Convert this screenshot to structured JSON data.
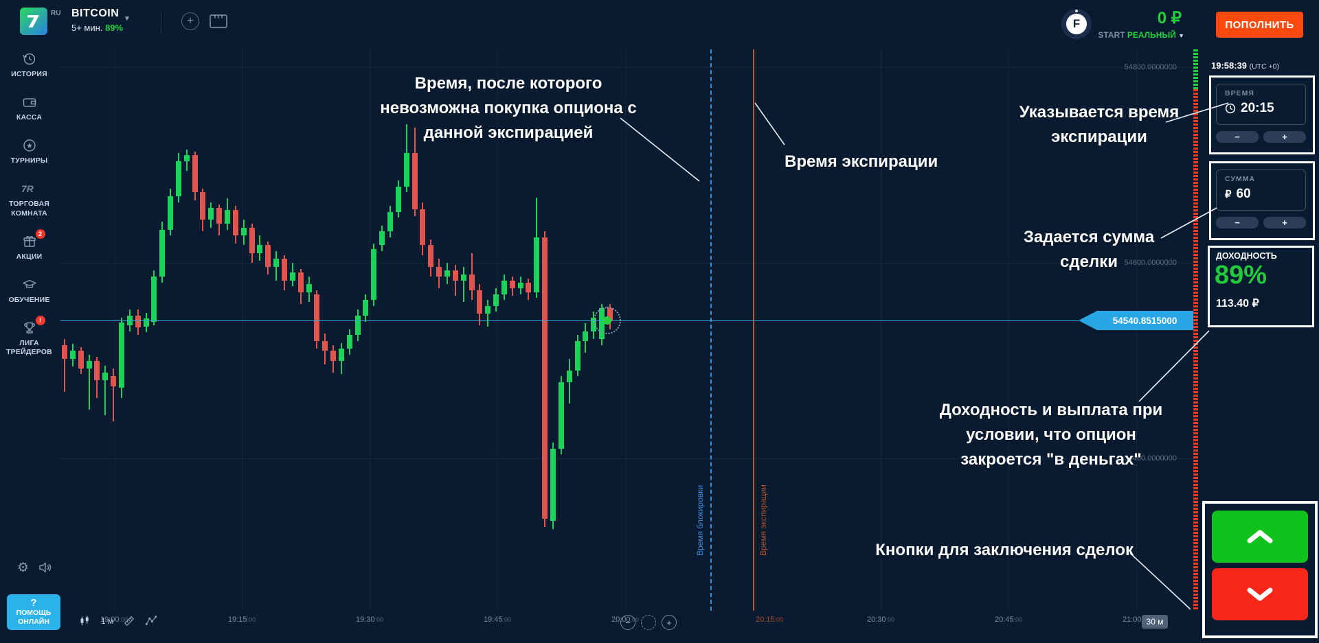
{
  "topbar": {
    "logo_badge": "RU",
    "asset_name": "BITCOIN",
    "asset_meta": "5+ мин.",
    "asset_payout": "89%",
    "balance": "0 ₽",
    "account_label": "START",
    "account_type": "РЕАЛЬНЫЙ",
    "deposit_label": "ПОПОЛНИТЬ",
    "avatar_letter": "F"
  },
  "sidebar": {
    "items": [
      {
        "label": "ИСТОРИЯ"
      },
      {
        "label": "КАССА"
      },
      {
        "label": "ТУРНИРЫ"
      },
      {
        "label": "ТОРГОВАЯ КОМНАТА"
      },
      {
        "label": "АКЦИИ",
        "badge": "2"
      },
      {
        "label": "ОБУЧЕНИЕ"
      },
      {
        "label": "ЛИГА ТРЕЙДЕРОВ",
        "badge": "!"
      }
    ],
    "help_icon": "?",
    "help_label": "ПОМОЩЬ\nОНЛАЙН"
  },
  "right_panel": {
    "clock": "19:58:39",
    "clock_tz": "(UTC +0)",
    "time_label": "ВРЕМЯ",
    "time_value": "20:15",
    "amount_label": "СУММА",
    "currency": "₽",
    "amount_value": "60",
    "minus": "−",
    "plus": "+",
    "payout_label": "ДОХОДНОСТЬ",
    "payout_percent": "89%",
    "payout_amount": "113.40 ₽"
  },
  "footer": {
    "timeframe": "1 м",
    "range_badge": "30 м",
    "zoom_out": "−",
    "zoom_in": "+"
  },
  "annotations": {
    "lock_time": "Время, после которого\nневозможна покупка опциона с\nданной экспирацией",
    "expiry": "Время экспирации",
    "set_time": "Указывается время\nэкспирации",
    "set_amount": "Задается сумма\nсделки",
    "payout": "Доходность и выплата при\nусловии, что опцион\nзакроется \"в деньгах\"",
    "buttons": "Кнопки для заключения сделок"
  },
  "colors": {
    "candle_up": "#1bd25b",
    "candle_down": "#e2544e",
    "price_line": "#29a7e4",
    "lock_line": "#2f8fe0",
    "expiry_line": "#d2521d",
    "buy_button": "#10c21b",
    "sell_button": "#f8271a",
    "deposit_button": "#fb4a0c",
    "accent_green": "#22ce3e"
  },
  "chart_data": {
    "type": "candlestick",
    "symbol": "BITCOIN",
    "timeframe_minutes": 1,
    "x_ticks": [
      "19:00:00",
      "19:15:00",
      "19:30:00",
      "19:45:00",
      "20:00:00",
      "20:15:00",
      "20:30:00",
      "20:45:00",
      "21:00:00"
    ],
    "expiry_tick": "20:15:00",
    "y_axis_values": [
      54800,
      54600,
      54400
    ],
    "y_axis_labels": [
      "54800.0000000",
      "54600.0000000",
      "54400.0000000"
    ],
    "current_price": 54540.8515,
    "current_price_label": "54540.8515000",
    "lock_line_label": "Время блокировки",
    "expiry_line_label": "Время экспирации",
    "candles_ohlc_format": [
      "open",
      "close",
      "low",
      "high"
    ],
    "candles": [
      [
        54516,
        54502,
        54468,
        54522
      ],
      [
        54502,
        54510,
        54494,
        54517
      ],
      [
        54510,
        54492,
        54486,
        54514
      ],
      [
        54492,
        54500,
        54450,
        54506
      ],
      [
        54500,
        54480,
        54462,
        54504
      ],
      [
        54480,
        54488,
        54444,
        54495
      ],
      [
        54484,
        54474,
        54438,
        54492
      ],
      [
        54472,
        54539,
        54462,
        54544
      ],
      [
        54536,
        54546,
        54530,
        54552
      ],
      [
        54546,
        54534,
        54526,
        54552
      ],
      [
        54535,
        54543,
        54529,
        54549
      ],
      [
        54540,
        54586,
        54536,
        54592
      ],
      [
        54586,
        54634,
        54580,
        54642
      ],
      [
        54634,
        54668,
        54628,
        54676
      ],
      [
        54668,
        54704,
        54662,
        54712
      ],
      [
        54704,
        54710,
        54694,
        54716
      ],
      [
        54710,
        54672,
        54664,
        54714
      ],
      [
        54672,
        54644,
        54632,
        54676
      ],
      [
        54644,
        54656,
        54636,
        54662
      ],
      [
        54656,
        54640,
        54628,
        54660
      ],
      [
        54640,
        54654,
        54634,
        54666
      ],
      [
        54654,
        54628,
        54620,
        54658
      ],
      [
        54628,
        54636,
        54618,
        54644
      ],
      [
        54636,
        54610,
        54600,
        54640
      ],
      [
        54610,
        54618,
        54602,
        54628
      ],
      [
        54618,
        54596,
        54588,
        54622
      ],
      [
        54596,
        54604,
        54582,
        54612
      ],
      [
        54604,
        54582,
        54572,
        54608
      ],
      [
        54582,
        54590,
        54576,
        54600
      ],
      [
        54590,
        54570,
        54558,
        54594
      ],
      [
        54570,
        54578,
        54560,
        54586
      ],
      [
        54568,
        54520,
        54512,
        54572
      ],
      [
        54520,
        54510,
        54496,
        54528
      ],
      [
        54510,
        54500,
        54488,
        54516
      ],
      [
        54500,
        54512,
        54486,
        54518
      ],
      [
        54512,
        54526,
        54506,
        54532
      ],
      [
        54526,
        54546,
        54520,
        54552
      ],
      [
        54546,
        54562,
        54540,
        54568
      ],
      [
        54562,
        54614,
        54556,
        54620
      ],
      [
        54618,
        54632,
        54612,
        54638
      ],
      [
        54632,
        54652,
        54626,
        54658
      ],
      [
        54652,
        54678,
        54646,
        54684
      ],
      [
        54678,
        54712,
        54672,
        54742
      ],
      [
        54712,
        54655,
        54648,
        54738
      ],
      [
        54655,
        54618,
        54608,
        54662
      ],
      [
        54618,
        54596,
        54586,
        54624
      ],
      [
        54596,
        54586,
        54574,
        54604
      ],
      [
        54586,
        54592,
        54578,
        54600
      ],
      [
        54592,
        54582,
        54566,
        54598
      ],
      [
        54582,
        54588,
        54560,
        54596
      ],
      [
        54588,
        54572,
        54562,
        54610
      ],
      [
        54572,
        54548,
        54536,
        54578
      ],
      [
        54548,
        54556,
        54535,
        54562
      ],
      [
        54556,
        54568,
        54550,
        54574
      ],
      [
        54568,
        54582,
        54562,
        54588
      ],
      [
        54582,
        54574,
        54566,
        54586
      ],
      [
        54574,
        54580,
        54568,
        54586
      ],
      [
        54580,
        54570,
        54562,
        54584
      ],
      [
        54570,
        54626,
        54564,
        54667
      ],
      [
        54626,
        54338,
        54330,
        54632
      ],
      [
        54336,
        54410,
        54328,
        54416
      ],
      [
        54410,
        54478,
        54404,
        54484
      ],
      [
        54478,
        54490,
        54456,
        54502
      ],
      [
        54490,
        54520,
        54484,
        54526
      ],
      [
        54520,
        54530,
        54508,
        54538
      ],
      [
        54530,
        54544,
        54522,
        54550
      ],
      [
        54522,
        54554,
        54516,
        54558
      ],
      [
        54554,
        54541,
        54532,
        54558
      ]
    ]
  }
}
